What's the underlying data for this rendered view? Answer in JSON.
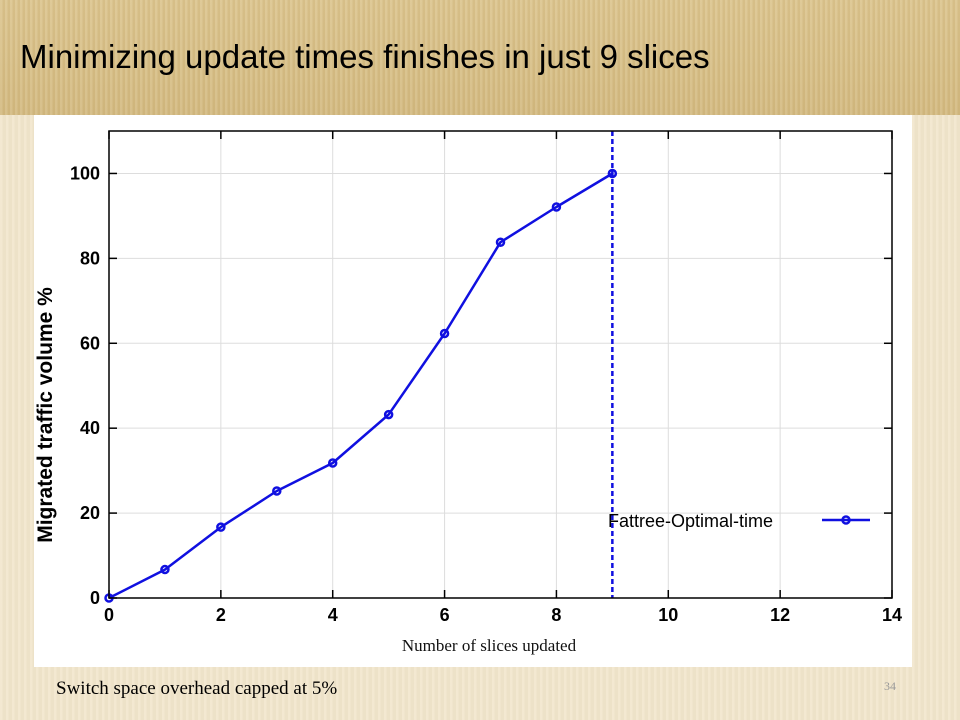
{
  "slide": {
    "title": "Minimizing update times finishes in just 9 slices",
    "footnote": "Switch space overhead capped at 5%",
    "page_number": "34"
  },
  "colors": {
    "series": "#1010e0",
    "axis": "#000000",
    "grid": "#dddddd"
  },
  "chart_data": {
    "type": "line",
    "title": "",
    "xlabel": "Number of slices updated",
    "ylabel": "Migrated traffic volume %",
    "xlim": [
      0,
      14
    ],
    "ylim": [
      0,
      110
    ],
    "xticks": [
      0,
      2,
      4,
      6,
      8,
      10,
      12,
      14
    ],
    "yticks": [
      0,
      20,
      40,
      60,
      80,
      100
    ],
    "grid": true,
    "legend": "bottom-right",
    "series": [
      {
        "name": "Fattree-Optimal-time",
        "x": [
          0,
          1,
          2,
          3,
          4,
          5,
          6,
          7,
          8,
          9
        ],
        "y": [
          0,
          6.7,
          16.7,
          25.2,
          31.8,
          43.2,
          62.3,
          83.8,
          92.1,
          100
        ]
      }
    ],
    "vline": {
      "x": 9,
      "style": "dashed"
    }
  }
}
